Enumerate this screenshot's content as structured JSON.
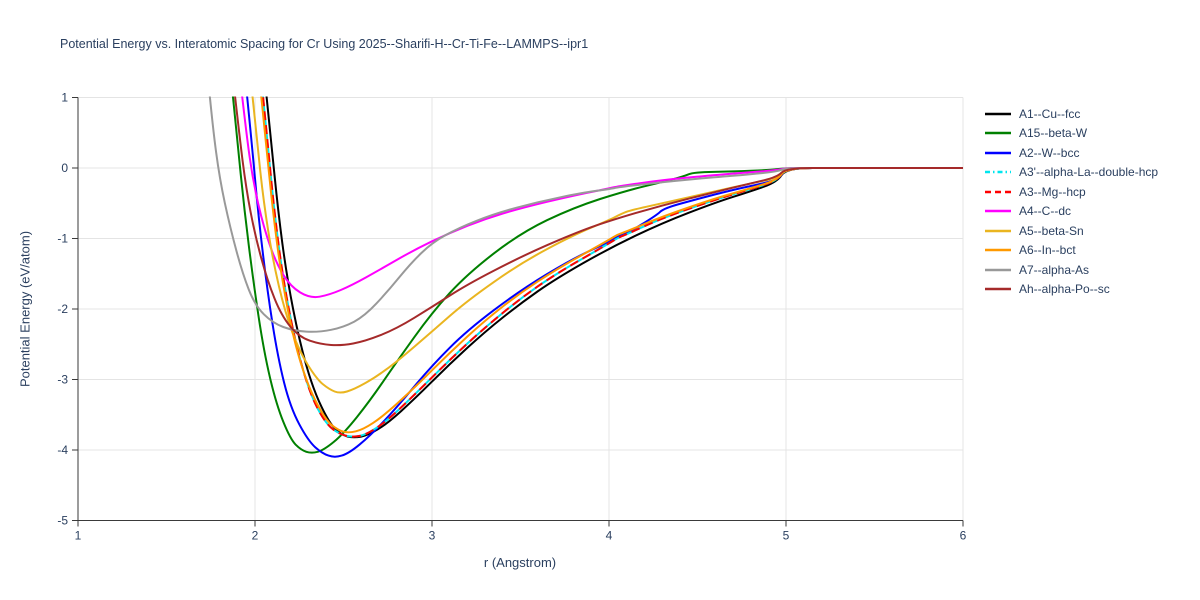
{
  "chart_data": {
    "type": "line",
    "title": "Potential Energy vs. Interatomic Spacing for Cr Using 2025--Sharifi-H--Cr-Ti-Fe--LAMMPS--ipr1",
    "xlabel": "r (Angstrom)",
    "ylabel": "Potential Energy (eV/atom)",
    "xlim": [
      1,
      6
    ],
    "ylim": [
      -5,
      1
    ],
    "x_ticks": [
      1,
      2,
      3,
      4,
      5,
      6
    ],
    "y_ticks": [
      1,
      0,
      -1,
      -2,
      -3,
      -4,
      -5
    ],
    "grid": true,
    "legend_position": "right",
    "font_color": "#2a3f5f",
    "grid_color": "#e4e4e4",
    "axis_color": "#3a3a3a",
    "series": [
      {
        "name": "A1--Cu--fcc",
        "color": "#000000",
        "dash": "solid",
        "points": [
          [
            2.05,
            1.4
          ],
          [
            2.09,
            0.4
          ],
          [
            2.13,
            -0.6
          ],
          [
            2.18,
            -1.55
          ],
          [
            2.25,
            -2.45
          ],
          [
            2.33,
            -3.15
          ],
          [
            2.42,
            -3.62
          ],
          [
            2.49,
            -3.79
          ],
          [
            2.56,
            -3.83
          ],
          [
            2.64,
            -3.79
          ],
          [
            2.75,
            -3.62
          ],
          [
            2.9,
            -3.28
          ],
          [
            3.1,
            -2.78
          ],
          [
            3.3,
            -2.32
          ],
          [
            3.5,
            -1.92
          ],
          [
            3.7,
            -1.57
          ],
          [
            4.0,
            -1.14
          ],
          [
            4.3,
            -0.78
          ],
          [
            4.6,
            -0.49
          ],
          [
            4.8,
            -0.33
          ],
          [
            4.95,
            -0.2
          ],
          [
            5.0,
            0
          ],
          [
            5.3,
            0
          ],
          [
            6.0,
            0
          ]
        ]
      },
      {
        "name": "A15--beta-W",
        "color": "#008000",
        "dash": "solid",
        "points": [
          [
            1.86,
            1.4
          ],
          [
            1.9,
            0.4
          ],
          [
            1.94,
            -0.6
          ],
          [
            1.99,
            -1.6
          ],
          [
            2.05,
            -2.6
          ],
          [
            2.12,
            -3.35
          ],
          [
            2.2,
            -3.85
          ],
          [
            2.26,
            -4.0
          ],
          [
            2.32,
            -4.05
          ],
          [
            2.39,
            -4.0
          ],
          [
            2.5,
            -3.77
          ],
          [
            2.65,
            -3.3
          ],
          [
            2.8,
            -2.75
          ],
          [
            3.0,
            -2.05
          ],
          [
            3.2,
            -1.5
          ],
          [
            3.5,
            -0.92
          ],
          [
            3.8,
            -0.56
          ],
          [
            4.1,
            -0.32
          ],
          [
            4.3,
            -0.2
          ],
          [
            4.42,
            -0.12
          ],
          [
            4.48,
            -0.06
          ],
          [
            4.7,
            -0.05
          ],
          [
            4.9,
            -0.03
          ],
          [
            5.0,
            0
          ],
          [
            5.3,
            0
          ],
          [
            6.0,
            0
          ]
        ]
      },
      {
        "name": "A2--W--bcc",
        "color": "#0000ff",
        "dash": "solid",
        "points": [
          [
            1.94,
            1.4
          ],
          [
            1.98,
            0.4
          ],
          [
            2.02,
            -0.7
          ],
          [
            2.07,
            -1.75
          ],
          [
            2.13,
            -2.7
          ],
          [
            2.2,
            -3.4
          ],
          [
            2.3,
            -3.87
          ],
          [
            2.38,
            -4.05
          ],
          [
            2.45,
            -4.11
          ],
          [
            2.53,
            -4.05
          ],
          [
            2.65,
            -3.8
          ],
          [
            2.8,
            -3.4
          ],
          [
            3.0,
            -2.8
          ],
          [
            3.2,
            -2.3
          ],
          [
            3.5,
            -1.73
          ],
          [
            3.8,
            -1.28
          ],
          [
            4.0,
            -1.05
          ],
          [
            4.05,
            -0.97
          ],
          [
            4.1,
            -0.93
          ],
          [
            4.27,
            -0.67
          ],
          [
            4.31,
            -0.57
          ],
          [
            4.5,
            -0.44
          ],
          [
            4.7,
            -0.31
          ],
          [
            4.85,
            -0.23
          ],
          [
            4.96,
            -0.16
          ],
          [
            5.0,
            0
          ],
          [
            5.3,
            0
          ],
          [
            6.0,
            0
          ]
        ]
      },
      {
        "name": "A3'--alpha-La--double-hcp",
        "color": "#00e5ee",
        "dash": "dashdot",
        "plot_dash": "solid",
        "points": [
          [
            2.03,
            1.4
          ],
          [
            2.07,
            0.4
          ],
          [
            2.11,
            -0.65
          ],
          [
            2.16,
            -1.6
          ],
          [
            2.23,
            -2.5
          ],
          [
            2.31,
            -3.2
          ],
          [
            2.4,
            -3.63
          ],
          [
            2.48,
            -3.78
          ],
          [
            2.555,
            -3.82
          ],
          [
            2.63,
            -3.78
          ],
          [
            2.74,
            -3.6
          ],
          [
            2.9,
            -3.22
          ],
          [
            3.1,
            -2.72
          ],
          [
            3.3,
            -2.26
          ],
          [
            3.5,
            -1.85
          ],
          [
            3.7,
            -1.5
          ],
          [
            4.0,
            -1.07
          ],
          [
            4.05,
            -0.99
          ],
          [
            4.1,
            -0.94
          ],
          [
            4.3,
            -0.71
          ],
          [
            4.6,
            -0.45
          ],
          [
            4.8,
            -0.3
          ],
          [
            4.95,
            -0.18
          ],
          [
            5.0,
            0
          ],
          [
            5.3,
            0
          ],
          [
            6.0,
            0
          ]
        ]
      },
      {
        "name": "A3--Mg--hcp",
        "color": "#ff0000",
        "dash": "dash",
        "points": [
          [
            2.03,
            1.4
          ],
          [
            2.07,
            0.4
          ],
          [
            2.11,
            -0.65
          ],
          [
            2.16,
            -1.6
          ],
          [
            2.23,
            -2.5
          ],
          [
            2.31,
            -3.2
          ],
          [
            2.4,
            -3.63
          ],
          [
            2.48,
            -3.78
          ],
          [
            2.555,
            -3.82
          ],
          [
            2.63,
            -3.78
          ],
          [
            2.74,
            -3.6
          ],
          [
            2.9,
            -3.22
          ],
          [
            3.1,
            -2.72
          ],
          [
            3.3,
            -2.26
          ],
          [
            3.5,
            -1.85
          ],
          [
            3.7,
            -1.5
          ],
          [
            4.0,
            -1.07
          ],
          [
            4.05,
            -0.99
          ],
          [
            4.1,
            -0.94
          ],
          [
            4.3,
            -0.71
          ],
          [
            4.6,
            -0.45
          ],
          [
            4.8,
            -0.3
          ],
          [
            4.95,
            -0.18
          ],
          [
            5.0,
            0
          ],
          [
            5.3,
            0
          ],
          [
            6.0,
            0
          ]
        ]
      },
      {
        "name": "A4--C--dc",
        "color": "#ff00ff",
        "dash": "solid",
        "points": [
          [
            1.91,
            1.4
          ],
          [
            1.95,
            0.5
          ],
          [
            1.99,
            -0.2
          ],
          [
            2.05,
            -0.85
          ],
          [
            2.12,
            -1.35
          ],
          [
            2.2,
            -1.68
          ],
          [
            2.31,
            -1.85
          ],
          [
            2.42,
            -1.8
          ],
          [
            2.55,
            -1.66
          ],
          [
            2.7,
            -1.45
          ],
          [
            2.9,
            -1.16
          ],
          [
            3.1,
            -0.92
          ],
          [
            3.3,
            -0.72
          ],
          [
            3.5,
            -0.57
          ],
          [
            3.8,
            -0.39
          ],
          [
            4.0,
            -0.29
          ],
          [
            4.05,
            -0.26
          ],
          [
            4.3,
            -0.17
          ],
          [
            4.6,
            -0.1
          ],
          [
            4.8,
            -0.06
          ],
          [
            4.95,
            -0.03
          ],
          [
            5.0,
            0
          ],
          [
            5.3,
            0
          ],
          [
            6.0,
            0
          ]
        ]
      },
      {
        "name": "A5--beta-Sn",
        "color": "#eab520",
        "dash": "solid",
        "points": [
          [
            1.97,
            1.4
          ],
          [
            2.01,
            0.4
          ],
          [
            2.05,
            -0.5
          ],
          [
            2.1,
            -1.3
          ],
          [
            2.17,
            -2.05
          ],
          [
            2.25,
            -2.6
          ],
          [
            2.35,
            -3.0
          ],
          [
            2.42,
            -3.14
          ],
          [
            2.48,
            -3.2
          ],
          [
            2.56,
            -3.14
          ],
          [
            2.68,
            -2.97
          ],
          [
            2.8,
            -2.75
          ],
          [
            3.0,
            -2.32
          ],
          [
            3.2,
            -1.88
          ],
          [
            3.5,
            -1.35
          ],
          [
            3.8,
            -0.95
          ],
          [
            4.0,
            -0.74
          ],
          [
            4.07,
            -0.65
          ],
          [
            4.12,
            -0.6
          ],
          [
            4.3,
            -0.5
          ],
          [
            4.6,
            -0.33
          ],
          [
            4.8,
            -0.22
          ],
          [
            4.95,
            -0.14
          ],
          [
            5.0,
            0
          ],
          [
            5.3,
            0
          ],
          [
            6.0,
            0
          ]
        ]
      },
      {
        "name": "A6--In--bct",
        "color": "#ff9900",
        "dash": "solid",
        "points": [
          [
            2.02,
            1.4
          ],
          [
            2.06,
            0.4
          ],
          [
            2.1,
            -0.6
          ],
          [
            2.15,
            -1.55
          ],
          [
            2.22,
            -2.45
          ],
          [
            2.3,
            -3.1
          ],
          [
            2.4,
            -3.58
          ],
          [
            2.47,
            -3.72
          ],
          [
            2.53,
            -3.76
          ],
          [
            2.61,
            -3.71
          ],
          [
            2.72,
            -3.53
          ],
          [
            2.9,
            -3.12
          ],
          [
            3.1,
            -2.62
          ],
          [
            3.3,
            -2.16
          ],
          [
            3.5,
            -1.77
          ],
          [
            3.7,
            -1.44
          ],
          [
            4.0,
            -1.02
          ],
          [
            4.05,
            -0.94
          ],
          [
            4.1,
            -0.9
          ],
          [
            4.3,
            -0.69
          ],
          [
            4.6,
            -0.43
          ],
          [
            4.8,
            -0.29
          ],
          [
            4.95,
            -0.17
          ],
          [
            5.0,
            0
          ],
          [
            5.3,
            0
          ],
          [
            6.0,
            0
          ]
        ]
      },
      {
        "name": "A7--alpha-As",
        "color": "#999999",
        "dash": "solid",
        "points": [
          [
            1.73,
            1.4
          ],
          [
            1.76,
            0.6
          ],
          [
            1.8,
            -0.15
          ],
          [
            1.86,
            -0.85
          ],
          [
            1.93,
            -1.5
          ],
          [
            2.0,
            -1.95
          ],
          [
            2.1,
            -2.2
          ],
          [
            2.22,
            -2.31
          ],
          [
            2.36,
            -2.33
          ],
          [
            2.5,
            -2.26
          ],
          [
            2.62,
            -2.1
          ],
          [
            2.75,
            -1.75
          ],
          [
            2.88,
            -1.35
          ],
          [
            3.0,
            -1.06
          ],
          [
            3.15,
            -0.85
          ],
          [
            3.35,
            -0.65
          ],
          [
            3.6,
            -0.48
          ],
          [
            3.85,
            -0.35
          ],
          [
            4.0,
            -0.3
          ],
          [
            4.06,
            -0.27
          ],
          [
            4.3,
            -0.2
          ],
          [
            4.6,
            -0.13
          ],
          [
            4.8,
            -0.09
          ],
          [
            4.95,
            -0.05
          ],
          [
            5.0,
            0
          ],
          [
            5.3,
            0
          ],
          [
            6.0,
            0
          ]
        ]
      },
      {
        "name": "Ah--alpha-Po--sc",
        "color": "#a52a2a",
        "dash": "solid",
        "points": [
          [
            1.87,
            1.4
          ],
          [
            1.91,
            0.5
          ],
          [
            1.95,
            -0.3
          ],
          [
            2.0,
            -0.95
          ],
          [
            2.07,
            -1.6
          ],
          [
            2.15,
            -2.1
          ],
          [
            2.25,
            -2.4
          ],
          [
            2.37,
            -2.5
          ],
          [
            2.49,
            -2.52
          ],
          [
            2.62,
            -2.46
          ],
          [
            2.8,
            -2.28
          ],
          [
            3.0,
            -1.97
          ],
          [
            3.2,
            -1.65
          ],
          [
            3.5,
            -1.26
          ],
          [
            3.8,
            -0.93
          ],
          [
            4.0,
            -0.75
          ],
          [
            4.3,
            -0.53
          ],
          [
            4.6,
            -0.34
          ],
          [
            4.8,
            -0.22
          ],
          [
            4.95,
            -0.13
          ],
          [
            5.0,
            0
          ],
          [
            5.3,
            0
          ],
          [
            6.0,
            0
          ]
        ]
      }
    ]
  }
}
